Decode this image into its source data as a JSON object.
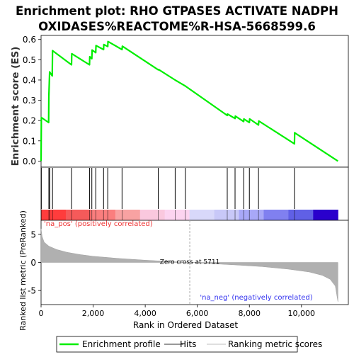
{
  "chart_data": {
    "type": "line",
    "title": "Enrichment plot: RHO GTPASES ACTIVATE NADPH\nOXIDASES%REACTOME%R-HSA-5668599.6",
    "xlabel": "Rank in Ordered Dataset",
    "ylabel_top": "Enrichment score (ES)",
    "ylabel_bottom": "Ranked list metric (PreRanked)",
    "x_max": 11400,
    "xlim": [
      0,
      11800
    ],
    "xticks": [
      0,
      2000,
      4000,
      6000,
      8000,
      10000
    ],
    "xtick_labels": [
      "0",
      "2,000",
      "4,000",
      "6,000",
      "8,000",
      "10,000"
    ],
    "es_ylim": [
      -0.03,
      0.62
    ],
    "es_yticks": [
      0.0,
      0.1,
      0.2,
      0.3,
      0.4,
      0.5,
      0.6
    ],
    "es_ytick_labels": [
      "0.0",
      "0.1",
      "0.2",
      "0.3",
      "0.4",
      "0.5",
      "0.6"
    ],
    "enrichment_profile": {
      "name": "Enrichment profile",
      "color": "#00ee00",
      "points": [
        [
          0,
          0.0
        ],
        [
          10,
          0.215
        ],
        [
          290,
          0.19
        ],
        [
          300,
          0.32
        ],
        [
          330,
          0.44
        ],
        [
          430,
          0.42
        ],
        [
          440,
          0.545
        ],
        [
          1170,
          0.475
        ],
        [
          1180,
          0.53
        ],
        [
          1860,
          0.475
        ],
        [
          1870,
          0.515
        ],
        [
          1950,
          0.505
        ],
        [
          1960,
          0.548
        ],
        [
          2100,
          0.535
        ],
        [
          2110,
          0.57
        ],
        [
          2400,
          0.55
        ],
        [
          2410,
          0.575
        ],
        [
          2560,
          0.565
        ],
        [
          2570,
          0.59
        ],
        [
          3110,
          0.55
        ],
        [
          3120,
          0.567
        ],
        [
          4500,
          0.45
        ],
        [
          4510,
          0.452
        ],
        [
          5150,
          0.4
        ],
        [
          5540,
          0.37
        ],
        [
          7150,
          0.225
        ],
        [
          7160,
          0.232
        ],
        [
          7450,
          0.21
        ],
        [
          7460,
          0.222
        ],
        [
          7780,
          0.195
        ],
        [
          7790,
          0.208
        ],
        [
          8000,
          0.19
        ],
        [
          8010,
          0.208
        ],
        [
          8350,
          0.178
        ],
        [
          8360,
          0.198
        ],
        [
          9730,
          0.085
        ],
        [
          9740,
          0.14
        ],
        [
          11400,
          0.0
        ]
      ]
    },
    "hits": [
      10,
      300,
      330,
      440,
      1170,
      1860,
      1950,
      2100,
      2400,
      2560,
      3110,
      4500,
      5150,
      5540,
      7150,
      7450,
      7780,
      8000,
      8350,
      9730
    ],
    "hits_label": "Hits",
    "ranking_label": "Ranking metric scores",
    "heatmap_colors": [
      "#ff3c3c",
      "#f55a5a",
      "#fa7e7e",
      "#f8a2a2",
      "#fac8de",
      "#fcd4f0",
      "#d8d8fa",
      "#c8c8f8",
      "#a8a8f8",
      "#8080f0",
      "#6060e6",
      "#2a00cc"
    ],
    "metric": {
      "ylim": [
        -7.5,
        7.5
      ],
      "yticks": [
        -5,
        0,
        5
      ],
      "ytick_labels": [
        "-5",
        "0",
        "5"
      ],
      "zero_cross": 5711,
      "zero_cross_label": "Zero cross at 5711",
      "pos_label": "'na_pos' (positively correlated)",
      "neg_label": "'na_neg' (negatively correlated)",
      "pos_color": "#ee3333",
      "neg_color": "#3333ee",
      "curve": [
        [
          0,
          6.0
        ],
        [
          40,
          4.6
        ],
        [
          120,
          3.6
        ],
        [
          300,
          2.9
        ],
        [
          600,
          2.3
        ],
        [
          1000,
          1.8
        ],
        [
          1500,
          1.4
        ],
        [
          2000,
          1.1
        ],
        [
          3000,
          0.7
        ],
        [
          4000,
          0.4
        ],
        [
          5000,
          0.15
        ],
        [
          5711,
          0.0
        ],
        [
          6500,
          -0.2
        ],
        [
          7500,
          -0.45
        ],
        [
          8500,
          -0.75
        ],
        [
          9500,
          -1.2
        ],
        [
          10300,
          -1.7
        ],
        [
          10800,
          -2.3
        ],
        [
          11100,
          -3.0
        ],
        [
          11300,
          -4.2
        ],
        [
          11400,
          -7.0
        ]
      ]
    }
  },
  "legend": {
    "items": [
      {
        "label": "Enrichment profile",
        "color": "#00ee00"
      },
      {
        "label": "Hits",
        "color": "#777777"
      },
      {
        "label": "Ranking metric scores",
        "color": "#cccccc"
      }
    ]
  }
}
